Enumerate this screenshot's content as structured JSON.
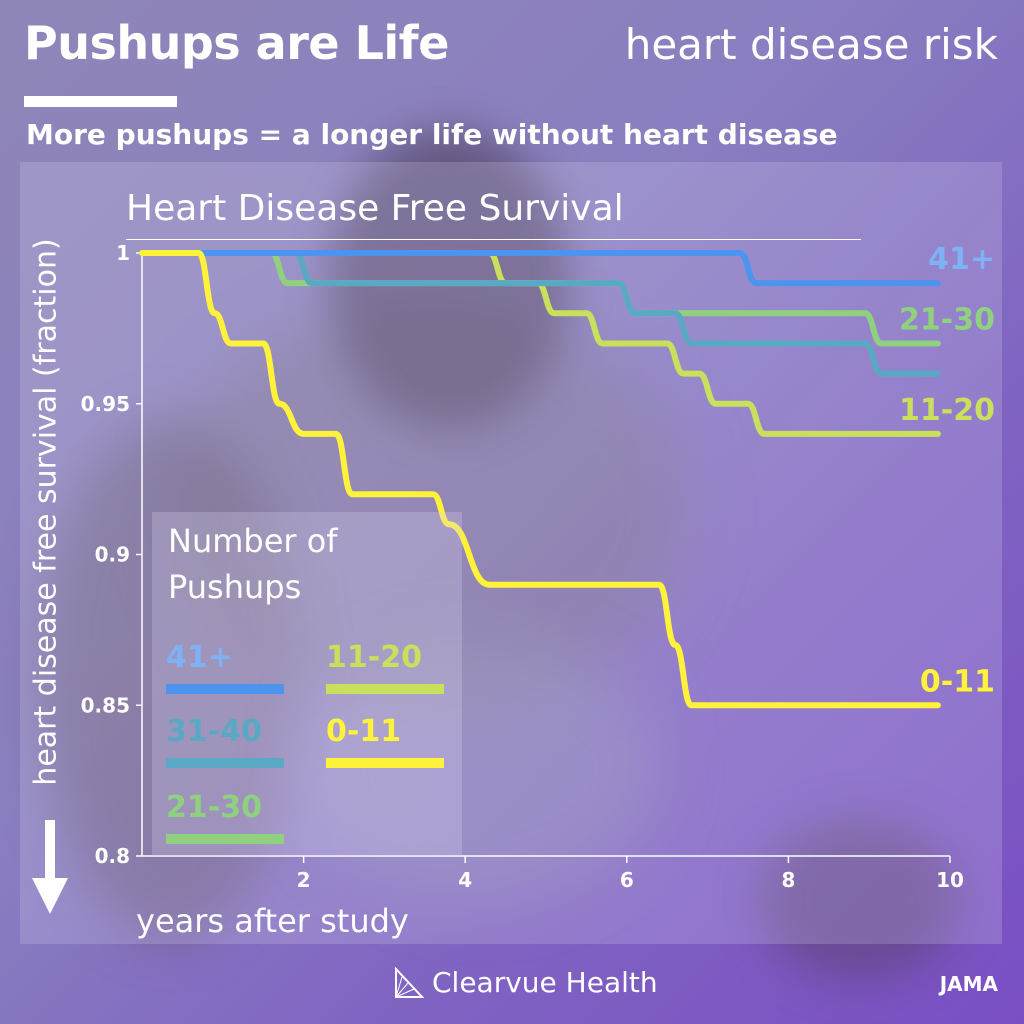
{
  "header": {
    "title": "Pushups are Life",
    "topic": "heart disease risk",
    "tagline": "More pushups = a longer life without heart disease"
  },
  "footer": {
    "brand": "Clearvue Health",
    "source": "JAMA"
  },
  "legend": {
    "title_line1": "Number of",
    "title_line2": "Pushups",
    "items": [
      {
        "label": "41+",
        "color": "#4d94f0"
      },
      {
        "label": "31-40",
        "color": "#5aa9c4"
      },
      {
        "label": "21-30",
        "color": "#8fd17f"
      },
      {
        "label": "11-20",
        "color": "#c8e05c"
      },
      {
        "label": "0-11",
        "color": "#fff23a"
      }
    ]
  },
  "chart_data": {
    "type": "line",
    "title": "Heart Disease Free Survival",
    "xlabel": "years after study",
    "ylabel": "heart disease free survival (fraction)",
    "xlim": [
      0,
      10
    ],
    "ylim": [
      0.8,
      1.0
    ],
    "xticks": [
      2,
      4,
      6,
      8,
      10
    ],
    "yticks": [
      0.8,
      0.85,
      0.9,
      0.95,
      1
    ],
    "ytick_labels": [
      "0.8",
      "0.85",
      "0.9",
      "0.95",
      "1"
    ],
    "grid": false,
    "step": true,
    "series": [
      {
        "name": "41+",
        "color": "#4d94f0",
        "end_label": "41+",
        "points": [
          [
            0,
            1.0
          ],
          [
            7.4,
            1.0
          ],
          [
            7.6,
            0.99
          ],
          [
            9.85,
            0.99
          ]
        ]
      },
      {
        "name": "31-40",
        "color": "#5aa9c4",
        "end_label": "",
        "points": [
          [
            0,
            1.0
          ],
          [
            1.9,
            1.0
          ],
          [
            2.1,
            0.99
          ],
          [
            5.9,
            0.99
          ],
          [
            6.1,
            0.98
          ],
          [
            6.6,
            0.98
          ],
          [
            6.8,
            0.97
          ],
          [
            8.95,
            0.97
          ],
          [
            9.15,
            0.96
          ],
          [
            9.85,
            0.96
          ]
        ]
      },
      {
        "name": "21-30",
        "color": "#8fd17f",
        "end_label": "21-30",
        "points": [
          [
            0,
            1.0
          ],
          [
            1.6,
            1.0
          ],
          [
            1.8,
            0.99
          ],
          [
            5.9,
            0.99
          ],
          [
            6.1,
            0.98
          ],
          [
            8.95,
            0.98
          ],
          [
            9.15,
            0.97
          ],
          [
            9.85,
            0.97
          ]
        ]
      },
      {
        "name": "11-20",
        "color": "#c8e05c",
        "end_label": "11-20",
        "points": [
          [
            0,
            1.0
          ],
          [
            4.3,
            1.0
          ],
          [
            4.5,
            0.99
          ],
          [
            4.9,
            0.99
          ],
          [
            5.1,
            0.98
          ],
          [
            5.5,
            0.98
          ],
          [
            5.7,
            0.97
          ],
          [
            6.5,
            0.97
          ],
          [
            6.7,
            0.96
          ],
          [
            6.9,
            0.96
          ],
          [
            7.1,
            0.95
          ],
          [
            7.5,
            0.95
          ],
          [
            7.7,
            0.94
          ],
          [
            9.85,
            0.94
          ]
        ]
      },
      {
        "name": "0-11",
        "color": "#fff23a",
        "end_label": "0-11",
        "points": [
          [
            0,
            1.0
          ],
          [
            0.7,
            1.0
          ],
          [
            0.9,
            0.98
          ],
          [
            1.1,
            0.97
          ],
          [
            1.5,
            0.97
          ],
          [
            1.7,
            0.95
          ],
          [
            2.0,
            0.94
          ],
          [
            2.4,
            0.94
          ],
          [
            2.6,
            0.92
          ],
          [
            3.0,
            0.92
          ],
          [
            3.6,
            0.92
          ],
          [
            3.8,
            0.91
          ],
          [
            4.3,
            0.89
          ],
          [
            6.4,
            0.89
          ],
          [
            6.6,
            0.87
          ],
          [
            6.8,
            0.85
          ],
          [
            9.85,
            0.85
          ]
        ]
      }
    ]
  }
}
